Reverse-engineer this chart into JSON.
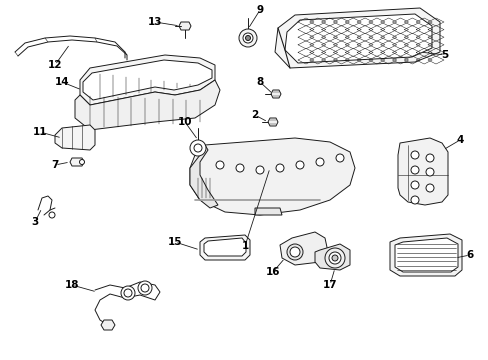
{
  "background_color": "#ffffff",
  "line_color": "#1a1a1a",
  "label_color": "#000000",
  "figsize": [
    4.89,
    3.6
  ],
  "dpi": 100,
  "label_fs": 7.5,
  "lw": 0.7
}
